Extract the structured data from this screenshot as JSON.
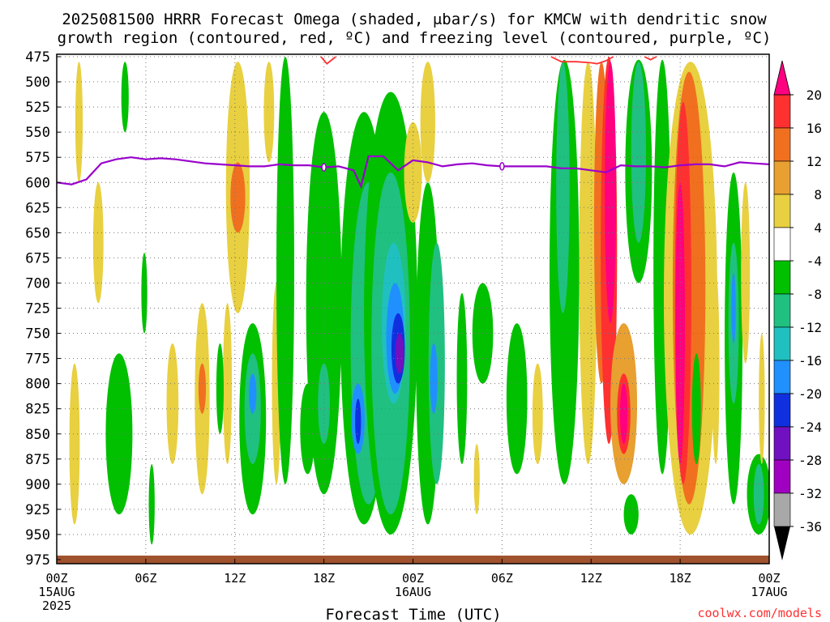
{
  "chart_data": {
    "type": "heatmap",
    "title_line1": "2025081500 HRRR Forecast Omega (shaded, μbar/s) for KMCW with dendritic snow",
    "title_line2": "growth region (contoured, red, ºC) and freezing level (contoured, purple, ºC)",
    "xlabel": "Forecast Time (UTC)",
    "credit": "coolwx.com/models",
    "x_range": [
      0,
      48
    ],
    "y_range": [
      475,
      975
    ],
    "y_ticks": [
      "475",
      "500",
      "525",
      "550",
      "575",
      "600",
      "625",
      "650",
      "675",
      "700",
      "725",
      "750",
      "775",
      "800",
      "825",
      "850",
      "875",
      "900",
      "925",
      "950",
      "975"
    ],
    "x_ticks": [
      {
        "hour": 0,
        "label": "00Z",
        "sub1": "15AUG",
        "sub2": "2025"
      },
      {
        "hour": 6,
        "label": "06Z"
      },
      {
        "hour": 12,
        "label": "12Z"
      },
      {
        "hour": 18,
        "label": "18Z"
      },
      {
        "hour": 24,
        "label": "00Z",
        "sub1": "16AUG"
      },
      {
        "hour": 30,
        "label": "06Z"
      },
      {
        "hour": 36,
        "label": "12Z"
      },
      {
        "hour": 42,
        "label": "18Z"
      },
      {
        "hour": 48,
        "label": "00Z",
        "sub1": "17AUG"
      }
    ],
    "colorbar": {
      "labels": [
        "20",
        "16",
        "12",
        "8",
        "4",
        "-4",
        "-8",
        "-12",
        "-16",
        "-20",
        "-24",
        "-28",
        "-32",
        "-36"
      ],
      "colors": [
        "#ff0080",
        "#ff3030",
        "#f07020",
        "#e8a030",
        "#e8d040",
        "#ffffff",
        "#00c000",
        "#20c080",
        "#20c0c0",
        "#2090ff",
        "#1030e0",
        "#7010c0",
        "#a000c0",
        "#a8a8a8",
        "#000000"
      ]
    },
    "freezing_level": {
      "color": "#9900cc",
      "hours": [
        0,
        1,
        2,
        3,
        4,
        5,
        6,
        7,
        8,
        9,
        10,
        11,
        12,
        13,
        14,
        15,
        16,
        17,
        18,
        19,
        20,
        20.5,
        21,
        22,
        23,
        24,
        25,
        26,
        27,
        28,
        29,
        30,
        31,
        32,
        33,
        34,
        35,
        36,
        37,
        38,
        39,
        40,
        41,
        42,
        43,
        44,
        45,
        46,
        47,
        48
      ],
      "pressures": [
        600,
        602,
        597,
        581,
        577,
        575,
        577,
        576,
        577,
        579,
        581,
        582,
        583,
        584,
        584,
        582,
        583,
        583,
        585,
        584,
        588,
        604,
        574,
        574,
        588,
        578,
        580,
        584,
        582,
        581,
        583,
        584,
        584,
        584,
        584,
        586,
        586,
        588,
        590,
        583,
        584,
        584,
        585,
        583,
        582,
        582,
        584,
        580,
        581,
        582
      ]
    },
    "dendritic_zone_color": "#ff3030",
    "ground_color": "#a0522d",
    "omega_cells": [
      {
        "h": 1.5,
        "p0": 480,
        "p1": 600,
        "hw": 0.25,
        "v": 6
      },
      {
        "h": 1.2,
        "p0": 780,
        "p1": 940,
        "hw": 0.35,
        "v": 6
      },
      {
        "h": 2.8,
        "p0": 600,
        "p1": 720,
        "hw": 0.35,
        "v": 6
      },
      {
        "h": 4.2,
        "p0": 770,
        "p1": 930,
        "hw": 0.9,
        "v": -6
      },
      {
        "h": 4.6,
        "p0": 480,
        "p1": 550,
        "hw": 0.25,
        "v": -6
      },
      {
        "h": 5.9,
        "p0": 670,
        "p1": 750,
        "hw": 0.2,
        "v": -6
      },
      {
        "h": 6.4,
        "p0": 880,
        "p1": 960,
        "hw": 0.2,
        "v": -6
      },
      {
        "h": 7.8,
        "p0": 760,
        "p1": 880,
        "hw": 0.4,
        "v": 6
      },
      {
        "h": 9.8,
        "p0": 720,
        "p1": 910,
        "hw": 0.5,
        "v": 6
      },
      {
        "h": 9.8,
        "p0": 780,
        "p1": 830,
        "hw": 0.25,
        "v": 10
      },
      {
        "h": 11.5,
        "p0": 720,
        "p1": 880,
        "hw": 0.3,
        "v": 6
      },
      {
        "h": 11.0,
        "p0": 760,
        "p1": 850,
        "hw": 0.25,
        "v": -6
      },
      {
        "h": 12.2,
        "p0": 480,
        "p1": 730,
        "hw": 0.8,
        "v": 6
      },
      {
        "h": 12.2,
        "p0": 580,
        "p1": 650,
        "hw": 0.5,
        "v": 10
      },
      {
        "h": 13.2,
        "p0": 740,
        "p1": 930,
        "hw": 0.9,
        "v": -6
      },
      {
        "h": 13.2,
        "p0": 770,
        "p1": 880,
        "hw": 0.55,
        "v": -10
      },
      {
        "h": 13.2,
        "p0": 790,
        "p1": 830,
        "hw": 0.25,
        "v": -18
      },
      {
        "h": 14.3,
        "p0": 480,
        "p1": 580,
        "hw": 0.35,
        "v": 6
      },
      {
        "h": 14.8,
        "p0": 700,
        "p1": 900,
        "hw": 0.3,
        "v": 6
      },
      {
        "h": 15.4,
        "p0": 475,
        "p1": 900,
        "hw": 0.6,
        "v": -6
      },
      {
        "h": 16.9,
        "p0": 800,
        "p1": 890,
        "hw": 0.5,
        "v": -6
      },
      {
        "h": 17.7,
        "p0": 540,
        "p1": 840,
        "hw": 0.5,
        "v": 6
      },
      {
        "h": 18.0,
        "p0": 530,
        "p1": 910,
        "hw": 1.2,
        "v": -6
      },
      {
        "h": 18.0,
        "p0": 780,
        "p1": 860,
        "hw": 0.4,
        "v": -10
      },
      {
        "h": 19.8,
        "p0": 640,
        "p1": 750,
        "hw": 0.5,
        "v": 6
      },
      {
        "h": 19.8,
        "p0": 680,
        "p1": 720,
        "hw": 0.25,
        "v": 10
      },
      {
        "h": 20.7,
        "p0": 530,
        "p1": 940,
        "hw": 1.6,
        "v": -6
      },
      {
        "h": 21.0,
        "p0": 600,
        "p1": 920,
        "hw": 1.2,
        "v": -10
      },
      {
        "h": 20.3,
        "p0": 800,
        "p1": 870,
        "hw": 0.45,
        "v": -18
      },
      {
        "h": 20.3,
        "p0": 815,
        "p1": 860,
        "hw": 0.2,
        "v": -22
      },
      {
        "h": 22.5,
        "p0": 510,
        "p1": 950,
        "hw": 1.8,
        "v": -6
      },
      {
        "h": 22.5,
        "p0": 590,
        "p1": 930,
        "hw": 1.3,
        "v": -10
      },
      {
        "h": 22.7,
        "p0": 660,
        "p1": 820,
        "hw": 0.8,
        "v": -14
      },
      {
        "h": 22.8,
        "p0": 700,
        "p1": 810,
        "hw": 0.6,
        "v": -18
      },
      {
        "h": 23.0,
        "p0": 730,
        "p1": 800,
        "hw": 0.45,
        "v": -22
      },
      {
        "h": 23.1,
        "p0": 750,
        "p1": 790,
        "hw": 0.3,
        "v": -26
      },
      {
        "h": 24.0,
        "p0": 540,
        "p1": 640,
        "hw": 0.6,
        "v": 6
      },
      {
        "h": 25.0,
        "p0": 600,
        "p1": 940,
        "hw": 0.8,
        "v": -6
      },
      {
        "h": 25.6,
        "p0": 660,
        "p1": 900,
        "hw": 0.55,
        "v": -10
      },
      {
        "h": 25.4,
        "p0": 760,
        "p1": 830,
        "hw": 0.25,
        "v": -16
      },
      {
        "h": 25.0,
        "p0": 480,
        "p1": 600,
        "hw": 0.5,
        "v": 6
      },
      {
        "h": 27.3,
        "p0": 710,
        "p1": 880,
        "hw": 0.35,
        "v": -6
      },
      {
        "h": 28.7,
        "p0": 700,
        "p1": 800,
        "hw": 0.7,
        "v": -6
      },
      {
        "h": 28.3,
        "p0": 860,
        "p1": 930,
        "hw": 0.2,
        "v": 6
      },
      {
        "h": 31.0,
        "p0": 740,
        "p1": 890,
        "hw": 0.7,
        "v": -6
      },
      {
        "h": 32.4,
        "p0": 780,
        "p1": 880,
        "hw": 0.35,
        "v": 6
      },
      {
        "h": 34.2,
        "p0": 478,
        "p1": 900,
        "hw": 1.0,
        "v": -6
      },
      {
        "h": 34.1,
        "p0": 480,
        "p1": 730,
        "hw": 0.45,
        "v": -10
      },
      {
        "h": 35.8,
        "p0": 480,
        "p1": 880,
        "hw": 0.6,
        "v": 6
      },
      {
        "h": 36.7,
        "p0": 480,
        "p1": 800,
        "hw": 0.5,
        "v": 10
      },
      {
        "h": 37.2,
        "p0": 475,
        "p1": 860,
        "hw": 0.55,
        "v": 14
      },
      {
        "h": 37.3,
        "p0": 480,
        "p1": 740,
        "hw": 0.38,
        "v": 18
      },
      {
        "h": 38.2,
        "p0": 740,
        "p1": 900,
        "hw": 0.9,
        "v": 8
      },
      {
        "h": 38.2,
        "p0": 790,
        "p1": 870,
        "hw": 0.45,
        "v": 14
      },
      {
        "h": 38.2,
        "p0": 800,
        "p1": 860,
        "hw": 0.25,
        "v": 18
      },
      {
        "h": 39.2,
        "p0": 478,
        "p1": 700,
        "hw": 0.9,
        "v": -6
      },
      {
        "h": 39.2,
        "p0": 480,
        "p1": 660,
        "hw": 0.5,
        "v": -10
      },
      {
        "h": 38.7,
        "p0": 910,
        "p1": 950,
        "hw": 0.5,
        "v": -6
      },
      {
        "h": 40.8,
        "p0": 478,
        "p1": 890,
        "hw": 0.6,
        "v": -6
      },
      {
        "h": 42.7,
        "p0": 480,
        "p1": 950,
        "hw": 1.8,
        "v": 6
      },
      {
        "h": 42.6,
        "p0": 490,
        "p1": 920,
        "hw": 1.1,
        "v": 10
      },
      {
        "h": 42.2,
        "p0": 520,
        "p1": 900,
        "hw": 0.55,
        "v": 14
      },
      {
        "h": 42.0,
        "p0": 600,
        "p1": 880,
        "hw": 0.32,
        "v": 18
      },
      {
        "h": 43.1,
        "p0": 770,
        "p1": 880,
        "hw": 0.3,
        "v": -6
      },
      {
        "h": 44.4,
        "p0": 690,
        "p1": 880,
        "hw": 0.25,
        "v": 6
      },
      {
        "h": 45.6,
        "p0": 590,
        "p1": 920,
        "hw": 0.6,
        "v": -6
      },
      {
        "h": 45.6,
        "p0": 660,
        "p1": 820,
        "hw": 0.35,
        "v": -10
      },
      {
        "h": 45.6,
        "p0": 690,
        "p1": 760,
        "hw": 0.15,
        "v": -18
      },
      {
        "h": 46.4,
        "p0": 600,
        "p1": 780,
        "hw": 0.3,
        "v": 6
      },
      {
        "h": 47.3,
        "p0": 870,
        "p1": 950,
        "hw": 0.8,
        "v": -6
      },
      {
        "h": 47.3,
        "p0": 880,
        "p1": 940,
        "hw": 0.35,
        "v": -10
      },
      {
        "h": 47.5,
        "p0": 750,
        "p1": 880,
        "hw": 0.2,
        "v": 6
      }
    ],
    "dendritic_zone": [
      {
        "hours": [
          17.8,
          18.2,
          18.8
        ],
        "pressures": [
          475,
          482,
          475
        ]
      },
      {
        "hours": [
          33.3,
          34.0,
          35.0,
          36.0,
          36.4,
          37.0,
          37.5
        ],
        "pressures": [
          475,
          480,
          480,
          481,
          482,
          479,
          475
        ]
      },
      {
        "hours": [
          39.6,
          40.0,
          40.4
        ],
        "pressures": [
          475,
          478,
          475
        ]
      }
    ]
  }
}
